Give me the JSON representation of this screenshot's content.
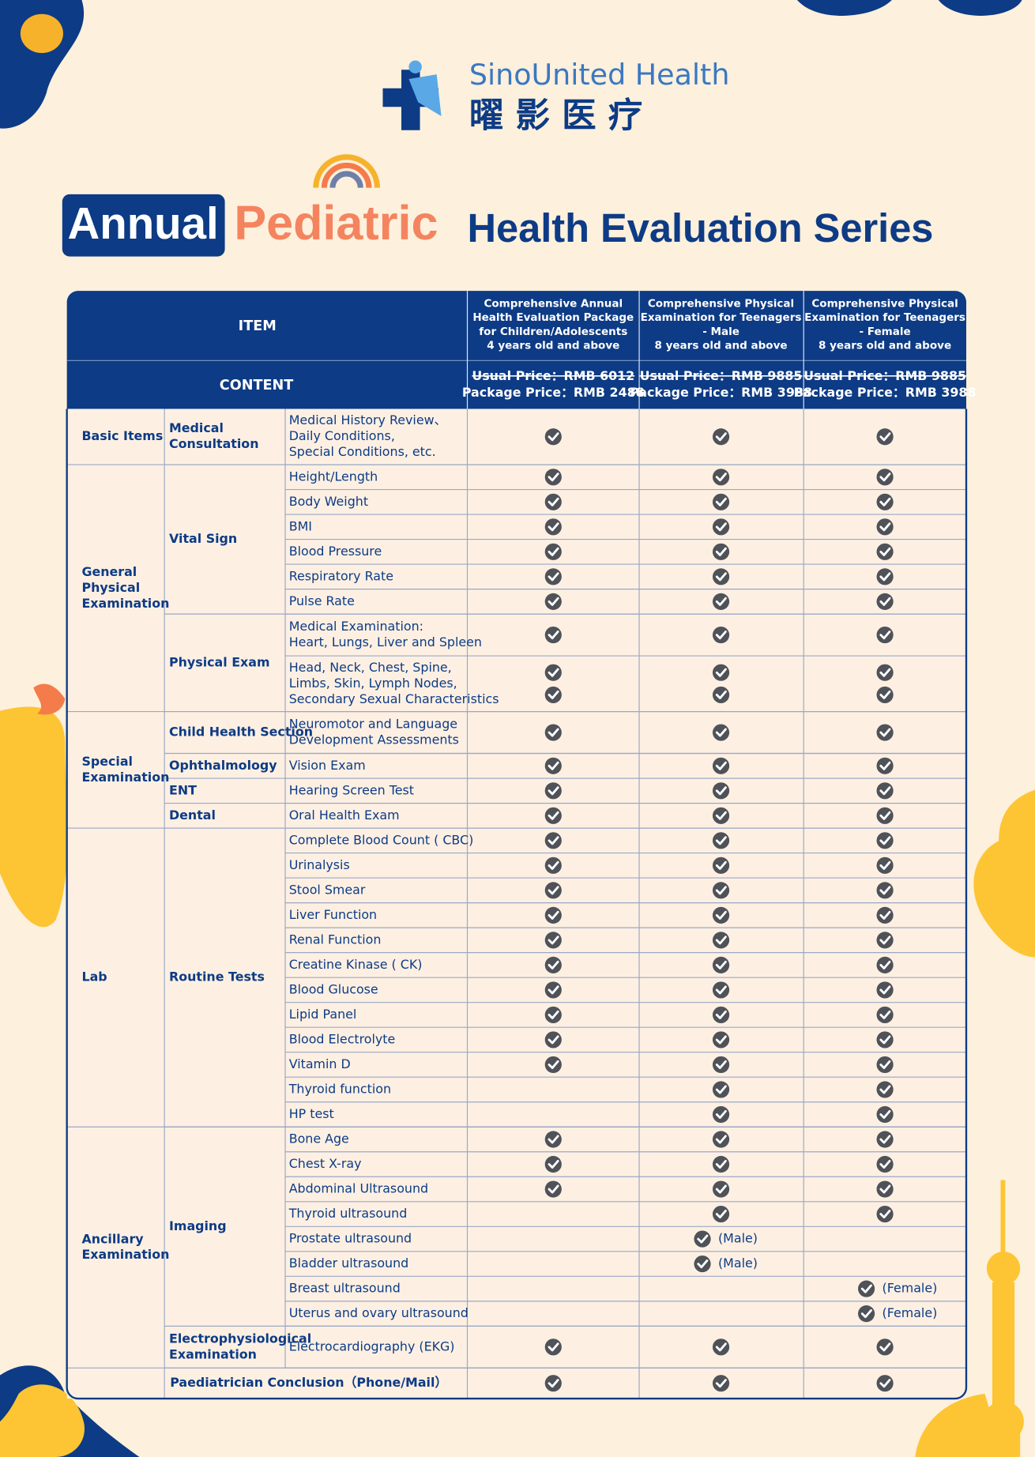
{
  "logo": {
    "en": "SinoUnited Health",
    "zh": "曜 影 医 疗"
  },
  "title": {
    "part1": "Annual",
    "part2": "Pediatric",
    "part3": "Health Evaluation Series"
  },
  "table": {
    "item_header": "ITEM",
    "content_header": "CONTENT",
    "columns": [
      {
        "lines": [
          "Comprehensive Annual",
          "Health Evaluation Package",
          "for Children/Adolescents",
          "4 years old and above"
        ],
        "usual": "Usual Price：RMB 6012",
        "package": "Package Price：RMB 2488"
      },
      {
        "lines": [
          "Comprehensive Physical",
          "Examination for Teenagers",
          "- Male",
          "8 years old and above"
        ],
        "usual": "Usual Price：RMB 9885",
        "package": "Package Price：RMB 3988"
      },
      {
        "lines": [
          "Comprehensive Physical",
          "Examination for Teenagers",
          "- Female",
          "8 years old and above"
        ],
        "usual": "Usual Price：RMB 9885",
        "package": "Package Price：RMB 3988"
      }
    ],
    "groups": [
      {
        "lines": [
          "Basic Items"
        ],
        "subgroups": [
          {
            "lines": [
              "Medical",
              "Consultation"
            ],
            "items": [
              {
                "lines": [
                  "Medical History Review、",
                  "Daily Conditions,",
                  "Special Conditions, etc."
                ],
                "checks": [
                  1,
                  1,
                  1
                ]
              }
            ]
          }
        ]
      },
      {
        "lines": [
          "General",
          "Physical",
          "Examination"
        ],
        "subgroups": [
          {
            "lines": [
              "Vital Sign"
            ],
            "items": [
              {
                "lines": [
                  "Height/Length"
                ],
                "checks": [
                  1,
                  1,
                  1
                ]
              },
              {
                "lines": [
                  "Body Weight"
                ],
                "checks": [
                  1,
                  1,
                  1
                ]
              },
              {
                "lines": [
                  "BMI"
                ],
                "checks": [
                  1,
                  1,
                  1
                ]
              },
              {
                "lines": [
                  "Blood Pressure"
                ],
                "checks": [
                  1,
                  1,
                  1
                ]
              },
              {
                "lines": [
                  "Respiratory Rate"
                ],
                "checks": [
                  1,
                  1,
                  1
                ]
              },
              {
                "lines": [
                  "Pulse Rate"
                ],
                "checks": [
                  1,
                  1,
                  1
                ]
              }
            ]
          },
          {
            "lines": [
              "Physical Exam"
            ],
            "items": [
              {
                "lines": [
                  "Medical Examination:",
                  "Heart, Lungs, Liver and Spleen"
                ],
                "checks": [
                  1,
                  1,
                  1
                ]
              },
              {
                "lines": [
                  "Head, Neck, Chest, Spine,",
                  "Limbs, Skin, Lymph Nodes,",
                  "Secondary Sexual Characteristics"
                ],
                "checks": [
                  2,
                  2,
                  2
                ]
              }
            ]
          }
        ]
      },
      {
        "lines": [
          "Special",
          "Examination"
        ],
        "subgroups": [
          {
            "lines": [
              "Child Health Section"
            ],
            "items": [
              {
                "lines": [
                  "Neuromotor and Language",
                  "Development Assessments"
                ],
                "checks": [
                  1,
                  1,
                  1
                ]
              }
            ]
          },
          {
            "lines": [
              "Ophthalmology"
            ],
            "items": [
              {
                "lines": [
                  "Vision Exam"
                ],
                "checks": [
                  1,
                  1,
                  1
                ]
              }
            ]
          },
          {
            "lines": [
              "ENT"
            ],
            "items": [
              {
                "lines": [
                  "Hearing Screen Test"
                ],
                "checks": [
                  1,
                  1,
                  1
                ]
              }
            ]
          },
          {
            "lines": [
              "Dental"
            ],
            "items": [
              {
                "lines": [
                  "Oral Health Exam"
                ],
                "checks": [
                  1,
                  1,
                  1
                ]
              }
            ]
          }
        ]
      },
      {
        "lines": [
          "Lab"
        ],
        "subgroups": [
          {
            "lines": [
              "Routine Tests"
            ],
            "items": [
              {
                "lines": [
                  "Complete Blood Count ( CBC)"
                ],
                "checks": [
                  1,
                  1,
                  1
                ]
              },
              {
                "lines": [
                  "Urinalysis"
                ],
                "checks": [
                  1,
                  1,
                  1
                ]
              },
              {
                "lines": [
                  "Stool Smear"
                ],
                "checks": [
                  1,
                  1,
                  1
                ]
              },
              {
                "lines": [
                  "Liver Function"
                ],
                "checks": [
                  1,
                  1,
                  1
                ]
              },
              {
                "lines": [
                  "Renal Function"
                ],
                "checks": [
                  1,
                  1,
                  1
                ]
              },
              {
                "lines": [
                  "Creatine Kinase ( CK)"
                ],
                "checks": [
                  1,
                  1,
                  1
                ]
              },
              {
                "lines": [
                  "Blood Glucose"
                ],
                "checks": [
                  1,
                  1,
                  1
                ]
              },
              {
                "lines": [
                  "Lipid Panel"
                ],
                "checks": [
                  1,
                  1,
                  1
                ]
              },
              {
                "lines": [
                  "Blood Electrolyte"
                ],
                "checks": [
                  1,
                  1,
                  1
                ]
              },
              {
                "lines": [
                  "Vitamin D"
                ],
                "checks": [
                  1,
                  1,
                  1
                ]
              },
              {
                "lines": [
                  "Thyroid function"
                ],
                "checks": [
                  0,
                  1,
                  1
                ]
              },
              {
                "lines": [
                  "HP test"
                ],
                "checks": [
                  0,
                  1,
                  1
                ]
              }
            ]
          }
        ]
      },
      {
        "lines": [
          "Ancillary",
          "Examination"
        ],
        "subgroups": [
          {
            "lines": [
              "Imaging"
            ],
            "items": [
              {
                "lines": [
                  "Bone Age"
                ],
                "checks": [
                  1,
                  1,
                  1
                ]
              },
              {
                "lines": [
                  "Chest X-ray"
                ],
                "checks": [
                  1,
                  1,
                  1
                ]
              },
              {
                "lines": [
                  "Abdominal Ultrasound"
                ],
                "checks": [
                  1,
                  1,
                  1
                ]
              },
              {
                "lines": [
                  "Thyroid ultrasound"
                ],
                "checks": [
                  0,
                  1,
                  1
                ]
              },
              {
                "lines": [
                  "Prostate ultrasound"
                ],
                "checks": [
                  0,
                  1,
                  0
                ],
                "notes": {
                  "1": "(Male)"
                }
              },
              {
                "lines": [
                  "Bladder ultrasound"
                ],
                "checks": [
                  0,
                  1,
                  0
                ],
                "notes": {
                  "1": "(Male)"
                }
              },
              {
                "lines": [
                  "Breast ultrasound"
                ],
                "checks": [
                  0,
                  0,
                  1
                ],
                "notes": {
                  "2": "(Female)"
                }
              },
              {
                "lines": [
                  "Uterus and ovary ultrasound"
                ],
                "checks": [
                  0,
                  0,
                  1
                ],
                "notes": {
                  "2": "(Female)"
                }
              }
            ]
          },
          {
            "lines": [
              "Electrophysiological",
              "Examination"
            ],
            "items": [
              {
                "lines": [
                  "Electrocardiography (EKG)"
                ],
                "checks": [
                  1,
                  1,
                  1
                ]
              }
            ]
          }
        ]
      }
    ],
    "conclusion": {
      "text": "Paediatrician Conclusion（Phone/Mail）",
      "checks": [
        1,
        1,
        1
      ]
    }
  }
}
